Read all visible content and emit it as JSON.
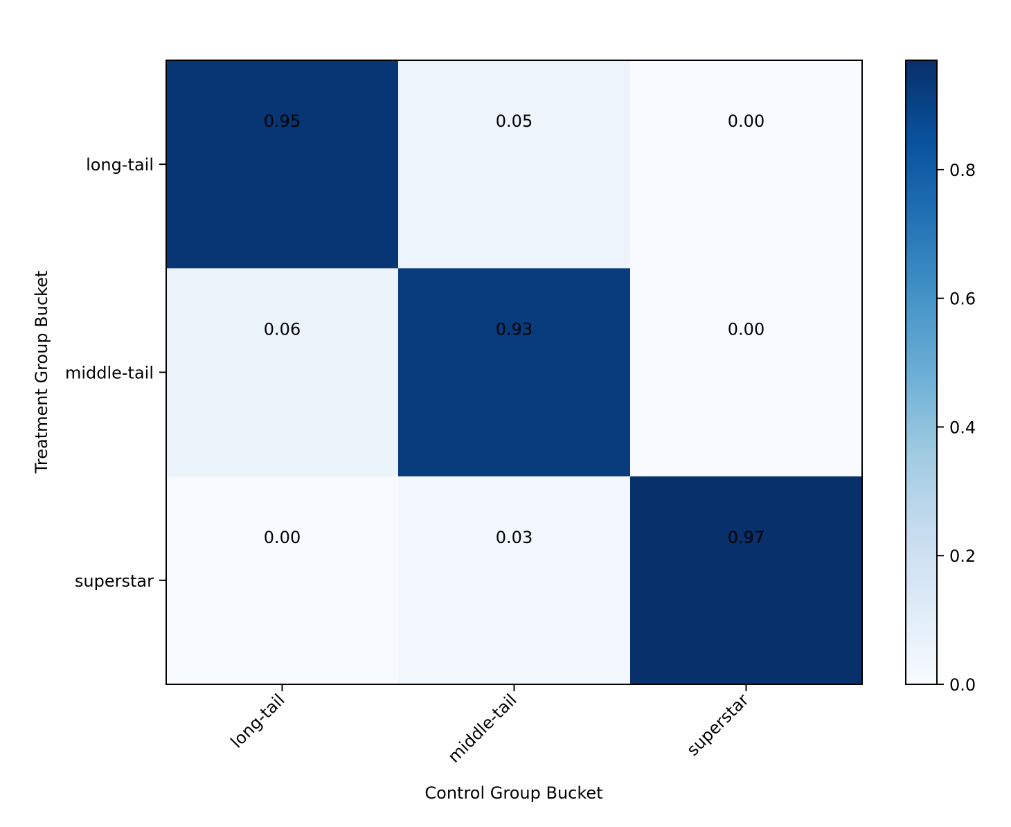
{
  "chart_data": {
    "type": "heatmap",
    "title": "",
    "xlabel": "Control Group Bucket",
    "ylabel": "Treatment Group Bucket",
    "x_categories": [
      "long-tail",
      "middle-tail",
      "superstar"
    ],
    "y_categories": [
      "long-tail",
      "middle-tail",
      "superstar"
    ],
    "values": [
      [
        0.95,
        0.05,
        0.0
      ],
      [
        0.06,
        0.93,
        0.0
      ],
      [
        0.0,
        0.03,
        0.97
      ]
    ],
    "value_labels": [
      [
        "0.95",
        "0.05",
        "0.00"
      ],
      [
        "0.06",
        "0.93",
        "0.00"
      ],
      [
        "0.00",
        "0.03",
        "0.97"
      ]
    ],
    "colormap": "Blues",
    "colorbar": {
      "range": [
        0,
        0.97
      ],
      "ticks": [
        0.0,
        0.2,
        0.4,
        0.6,
        0.8
      ],
      "tick_labels": [
        "0.0",
        "0.2",
        "0.4",
        "0.6",
        "0.8"
      ]
    },
    "grid": false,
    "legend": "colorbar-right"
  }
}
